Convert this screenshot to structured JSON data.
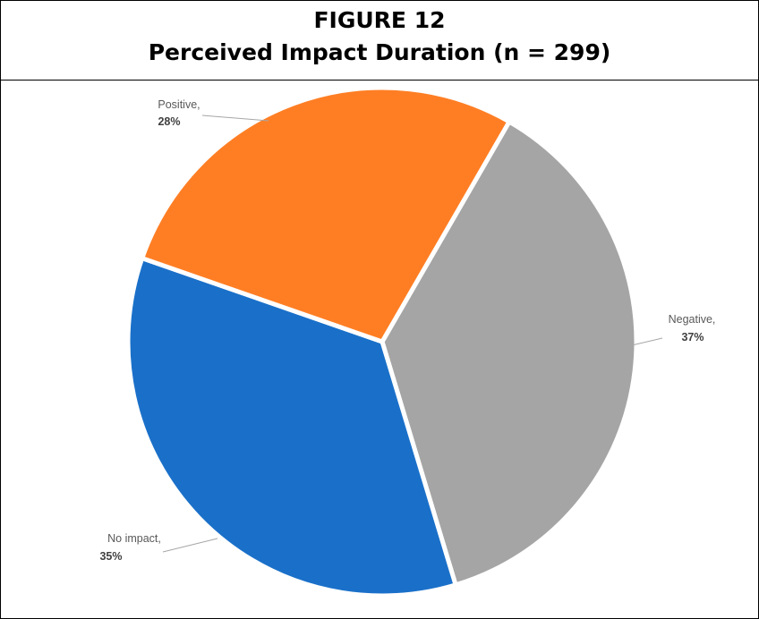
{
  "figure": {
    "number": "FIGURE 12",
    "title": "Perceived Impact Duration (n = 299)"
  },
  "chart_data": {
    "type": "pie",
    "categories": [
      "Negative",
      "No impact",
      "Positive"
    ],
    "values": [
      37,
      35,
      28
    ],
    "unit": "%",
    "colors": [
      "#A5A5A5",
      "#1A70C9",
      "#FF7E24"
    ],
    "data_labels": [
      {
        "name": "Negative,",
        "value": "37%"
      },
      {
        "name": "No impact,",
        "value": "35%"
      },
      {
        "name": "Positive,",
        "value": "28%"
      }
    ],
    "legend": "none"
  }
}
